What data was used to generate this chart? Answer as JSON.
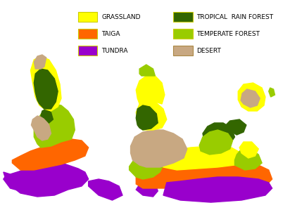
{
  "title": "",
  "figsize": [
    4.12,
    2.89
  ],
  "dpi": 100,
  "background_color": "#ffffff",
  "legend_items": [
    {
      "label": "TUNDRA",
      "color": "#9900CC",
      "col": 0
    },
    {
      "label": "TAIGA",
      "color": "#FF6600",
      "col": 0
    },
    {
      "label": "GRASSLAND",
      "color": "#FFFF00",
      "col": 0
    },
    {
      "label": "DESERT",
      "color": "#C8A882",
      "col": 1
    },
    {
      "label": "TEMPERATE FOREST",
      "color": "#99CC00",
      "col": 1
    },
    {
      "label": "TROPICAL  RAIN FOREST",
      "color": "#336600",
      "col": 1
    }
  ],
  "legend_edge_color": "#CCCC00",
  "map_image_placeholder": true,
  "map_colors": {
    "tundra": "#9900CC",
    "taiga": "#FF6600",
    "grassland": "#FFFF00",
    "desert": "#C8A882",
    "temperate_forest": "#99CC00",
    "tropical_forest": "#336600",
    "ocean": "#ffffff"
  }
}
